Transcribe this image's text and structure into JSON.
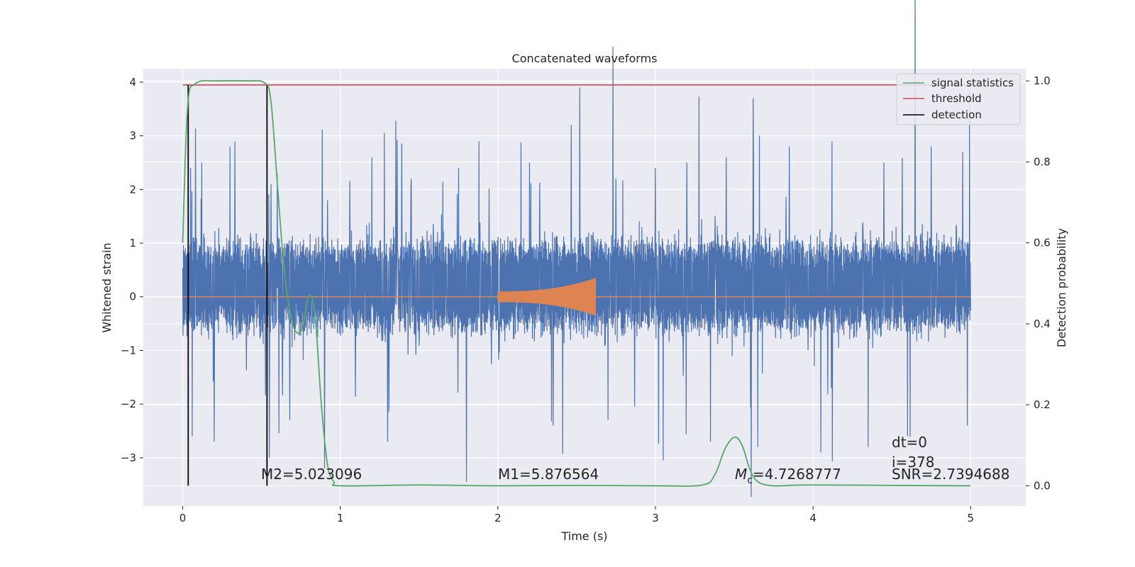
{
  "chart_data": {
    "type": "line",
    "title": "Concatenated waveforms",
    "xlabel": "Time (s)",
    "ylabel_left": "Whitened strain",
    "ylabel_right": "Detection probability",
    "xlim": [
      -0.25,
      5.35
    ],
    "ylim_left": [
      -3.9,
      4.25
    ],
    "ylim_right": [
      -0.05,
      1.03
    ],
    "x_ticks": [
      0,
      1,
      2,
      3,
      4,
      5
    ],
    "x_tick_labels": [
      "0",
      "1",
      "2",
      "3",
      "4",
      "5"
    ],
    "y_left_ticks": [
      4,
      3,
      2,
      1,
      0,
      -1,
      -2,
      -3
    ],
    "y_left_tick_labels": [
      "4",
      "3",
      "2",
      "1",
      "0",
      "−1",
      "−2",
      "−3"
    ],
    "y_right_ticks": [
      1.0,
      0.8,
      0.6,
      0.4,
      0.2,
      0.0
    ],
    "y_right_tick_labels": [
      "1.0",
      "0.8",
      "0.6",
      "0.4",
      "0.2",
      "0.0"
    ],
    "grid": true,
    "legend_position": "top-right",
    "legend": [
      "signal statistics",
      "threshold",
      "detection"
    ],
    "series": {
      "noise": {
        "axis": "left",
        "color": "#4c72b0",
        "x_range": [
          0,
          5
        ],
        "typical_envelope": [
          -0.55,
          0.95
        ],
        "spikes_positive": [
          [
            0.05,
            2.4
          ],
          [
            0.12,
            2.5
          ],
          [
            0.3,
            2.8
          ],
          [
            0.6,
            2.3
          ],
          [
            0.92,
            1.8
          ],
          [
            1.2,
            2.6
          ],
          [
            1.45,
            2.2
          ],
          [
            1.75,
            2.4
          ],
          [
            1.88,
            2.9
          ],
          [
            2.2,
            2.5
          ],
          [
            2.52,
            3.9
          ],
          [
            2.75,
            2.2
          ],
          [
            3.0,
            2.4
          ],
          [
            3.2,
            2.5
          ],
          [
            3.45,
            2.6
          ],
          [
            3.62,
            3.7
          ],
          [
            3.85,
            2.8
          ],
          [
            4.12,
            2.9
          ],
          [
            4.45,
            2.5
          ],
          [
            4.75,
            2.8
          ],
          [
            4.95,
            2.7
          ]
        ],
        "spikes_negative": [
          [
            0.06,
            -2.6
          ],
          [
            0.2,
            -2.7
          ],
          [
            0.55,
            -3.0
          ],
          [
            0.9,
            -3.2
          ],
          [
            1.3,
            -2.7
          ],
          [
            1.8,
            -3.45
          ],
          [
            2.35,
            -2.4
          ],
          [
            2.7,
            -2.3
          ],
          [
            3.05,
            -3.05
          ],
          [
            3.35,
            -2.7
          ],
          [
            3.65,
            -2.8
          ],
          [
            4.05,
            -2.9
          ],
          [
            4.35,
            -2.8
          ],
          [
            4.6,
            -2.6
          ],
          [
            4.98,
            -2.4
          ]
        ]
      },
      "injected_signal": {
        "axis": "left",
        "color": "#dd8452",
        "x_range": [
          2.0,
          2.62
        ],
        "amplitude_start": 0.1,
        "amplitude_end": 0.35
      },
      "signal_statistics": {
        "name": "signal statistics",
        "axis": "right",
        "color": "#55a868",
        "x": [
          0,
          0.02,
          0.04,
          0.07,
          0.12,
          0.2,
          0.4,
          0.52,
          0.56,
          0.6,
          0.64,
          0.68,
          0.72,
          0.76,
          0.8,
          0.84,
          0.88,
          0.92,
          0.96,
          1.0,
          1.5,
          2.0,
          2.5,
          3.0,
          3.3,
          3.38,
          3.44,
          3.5,
          3.55,
          3.6,
          3.65,
          3.75,
          3.95,
          4.5,
          5.0
        ],
        "y": [
          0.6,
          0.85,
          0.97,
          0.99,
          1.0,
          1.0,
          1.0,
          0.995,
          0.95,
          0.75,
          0.55,
          0.43,
          0.38,
          0.39,
          0.47,
          0.42,
          0.2,
          0.05,
          0.01,
          0.0,
          0.002,
          0.0,
          0.001,
          0.0,
          0.002,
          0.03,
          0.09,
          0.12,
          0.1,
          0.04,
          0.01,
          0.0,
          0.002,
          0.001,
          0.0
        ]
      },
      "threshold": {
        "name": "threshold",
        "axis": "right",
        "color": "#c44e52",
        "x": [
          0,
          5
        ],
        "y": [
          0.99,
          0.99
        ]
      },
      "detection": {
        "name": "detection",
        "axis": "right",
        "color": "#000000",
        "x": [
          0.035,
          0.535
        ],
        "y_span": [
          0.0,
          0.99
        ]
      }
    },
    "annotations": {
      "m2": "M2=5.023096",
      "m1": "M1=5.876564",
      "mc_symbol": "M",
      "mc_sub": "c",
      "mc_value": "=4.7268777",
      "dt": "dt=0",
      "i": "i=378",
      "snr": "SNR=2.7394688"
    }
  }
}
